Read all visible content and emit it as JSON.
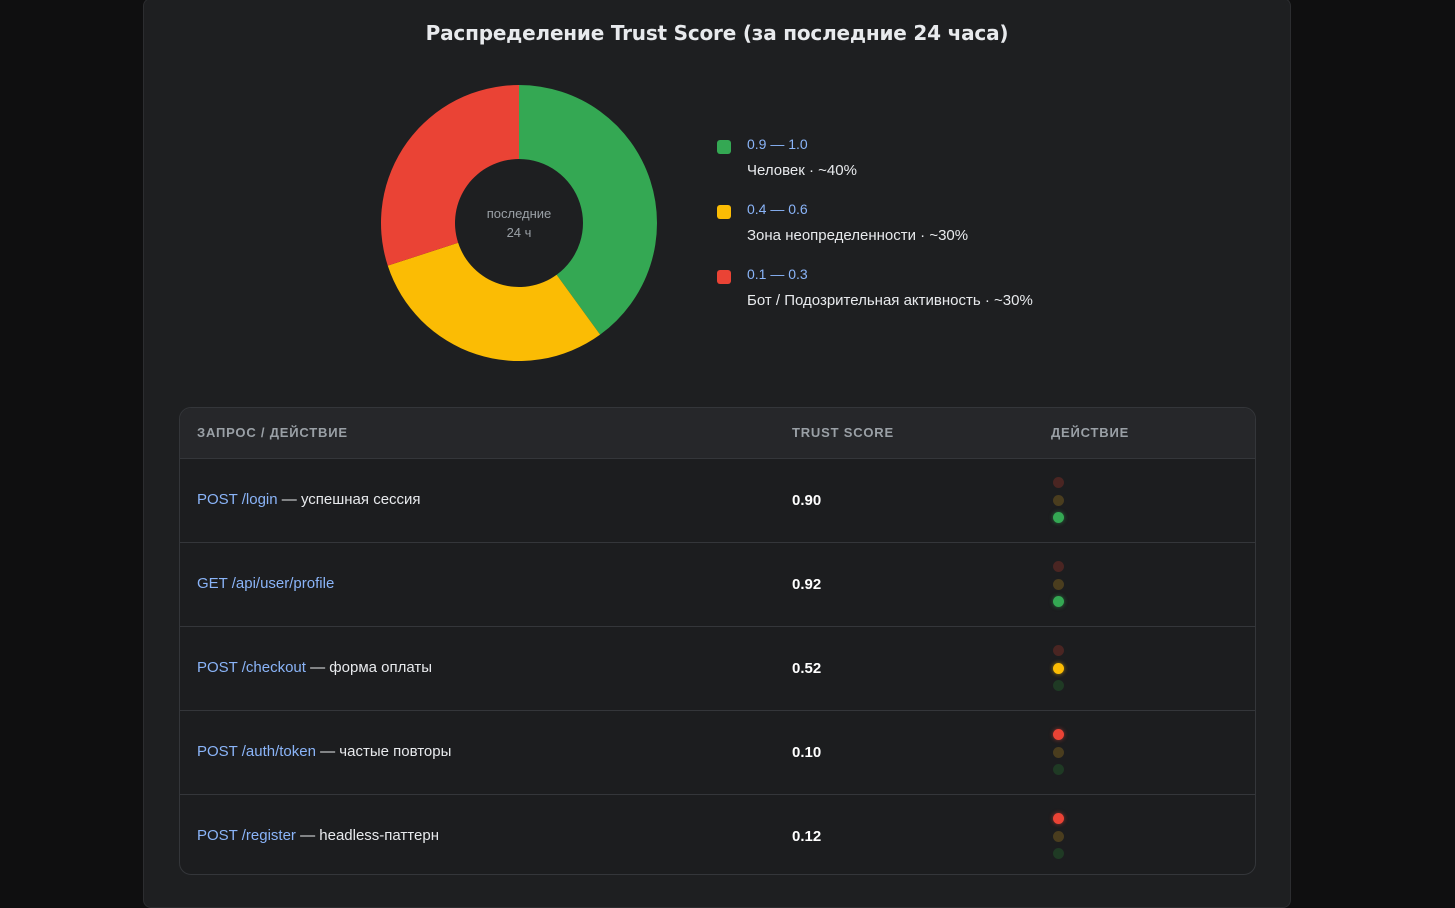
{
  "chart_data": {
    "type": "pie",
    "title": "Распределение Trust Score (за последние 24 часа)",
    "center_label": [
      "последние",
      "24 ч"
    ],
    "slices": [
      {
        "range": "0.9 — 1.0",
        "label": "Человек · ~40%",
        "value": 40,
        "color": "#34a853"
      },
      {
        "range": "0.4 — 0.6",
        "label": "Зона неопределенности · ~30%",
        "value": 30,
        "color": "#fbbc04"
      },
      {
        "range": "0.1 — 0.3",
        "label": "Бот / Подозрительная активность · ~30%",
        "value": 30,
        "color": "#ea4335"
      }
    ],
    "legend_position": "right"
  },
  "table": {
    "headers": [
      "ЗАПРОС / ДЕЙСТВИЕ",
      "TRUST SCORE",
      "ДЕЙСТВИЕ"
    ],
    "rows": [
      {
        "endpoint": "POST /login",
        "desc": " — успешная сессия",
        "score": "0.90",
        "light": "green"
      },
      {
        "endpoint": "GET /api/user/profile",
        "desc": "",
        "score": "0.92",
        "light": "green"
      },
      {
        "endpoint": "POST /checkout",
        "desc": " — форма оплаты",
        "score": "0.52",
        "light": "yellow"
      },
      {
        "endpoint": "POST /auth/token",
        "desc": " — частые повторы",
        "score": "0.10",
        "light": "red"
      },
      {
        "endpoint": "POST /register",
        "desc": " — headless-паттерн",
        "score": "0.12",
        "light": "red"
      }
    ]
  }
}
